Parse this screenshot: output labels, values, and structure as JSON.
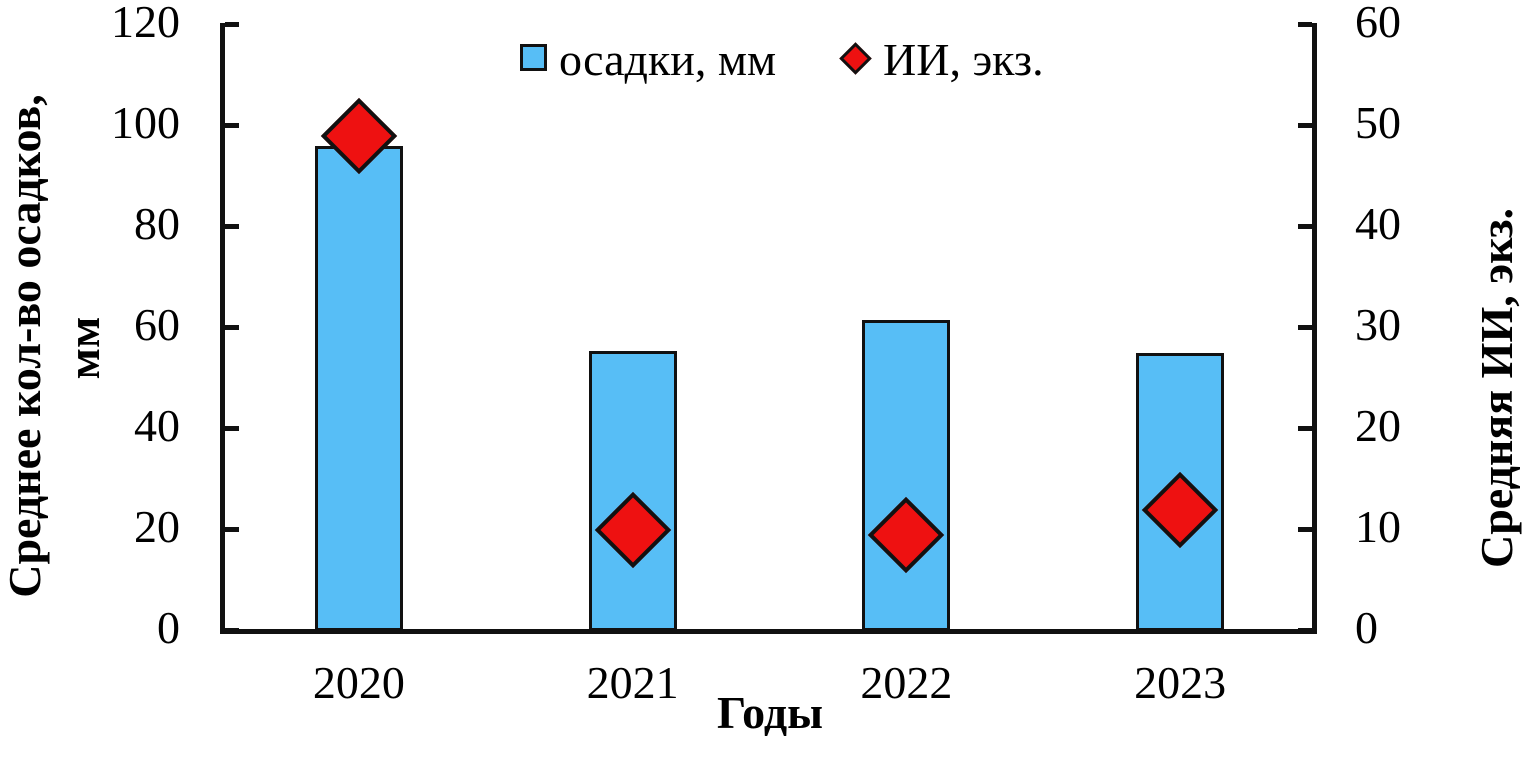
{
  "chart_data": {
    "type": "bar",
    "title": "",
    "categories": [
      "2020",
      "2021",
      "2022",
      "2023"
    ],
    "series": [
      {
        "name": "осадки, мм",
        "type": "bar",
        "axis": "left",
        "color": "#57BEF6",
        "values": [
          96,
          55.5,
          61.5,
          55
        ]
      },
      {
        "name": "ИИ, экз.",
        "type": "scatter",
        "marker": "diamond",
        "axis": "right",
        "color": "#EE1111",
        "values": [
          49,
          10,
          9.5,
          12
        ]
      }
    ],
    "xlabel": "Годы",
    "ylabel_left_lines": [
      "Среднее кол-во осадков,",
      "мм"
    ],
    "ylabel_right": "Средняя ИИ, экз.",
    "left_axis": {
      "min": 0,
      "max": 120,
      "step": 20,
      "ticks": [
        "0",
        "20",
        "40",
        "60",
        "80",
        "100",
        "120"
      ]
    },
    "right_axis": {
      "min": 0,
      "max": 60,
      "step": 10,
      "ticks": [
        "0",
        "10",
        "20",
        "30",
        "40",
        "50",
        "60"
      ]
    },
    "grid": false,
    "legend_position": "top-center",
    "colors": {
      "bar_fill": "#57BEF6",
      "marker_fill": "#EE1111",
      "stroke": "#111111",
      "text": "#000000"
    }
  },
  "legend": {
    "items": [
      {
        "label": "осадки, мм",
        "swatch": "square"
      },
      {
        "label": "ИИ, экз.",
        "swatch": "diamond"
      }
    ]
  }
}
